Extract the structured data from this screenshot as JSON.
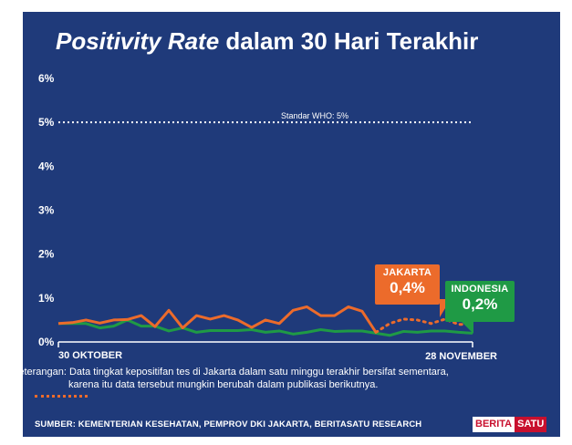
{
  "title": {
    "italic_part": "Positivity Rate",
    "rest": " dalam 30 Hari Terakhir"
  },
  "chart_data": {
    "type": "line",
    "title": "Positivity Rate dalam 30 Hari Terakhir",
    "ylim": [
      0,
      6
    ],
    "y_ticks": [
      "0%",
      "1%",
      "2%",
      "3%",
      "4%",
      "5%",
      "6%"
    ],
    "x_tick_labels": [
      "30 OKTOBER",
      "28 NOVEMBER"
    ],
    "x_range": [
      "30 Oktober",
      "28 November"
    ],
    "grid": false,
    "reference_line": {
      "value": 5,
      "label": "Standar WHO: 5%"
    },
    "series": [
      {
        "name": "JAKARTA",
        "color": "#ec6b2b",
        "values": [
          0.42,
          0.44,
          0.5,
          0.43,
          0.5,
          0.51,
          0.6,
          0.35,
          0.72,
          0.32,
          0.6,
          0.52,
          0.6,
          0.5,
          0.33,
          0.5,
          0.42,
          0.72,
          0.8,
          0.6,
          0.6,
          0.8,
          0.7,
          0.22,
          0.42,
          0.52,
          0.5,
          0.42,
          0.52,
          0.4,
          0.4
        ],
        "provisional_from_index": 23
      },
      {
        "name": "INDONESIA",
        "color": "#1f9a45",
        "values": [
          0.42,
          0.42,
          0.42,
          0.32,
          0.36,
          0.5,
          0.36,
          0.36,
          0.25,
          0.32,
          0.22,
          0.26,
          0.26,
          0.26,
          0.28,
          0.22,
          0.25,
          0.18,
          0.22,
          0.28,
          0.24,
          0.25,
          0.25,
          0.2,
          0.15,
          0.24,
          0.22,
          0.25,
          0.25,
          0.22,
          0.2
        ]
      }
    ]
  },
  "callouts": {
    "jakarta": {
      "name": "JAKARTA",
      "value": "0,4%"
    },
    "indonesia": {
      "name": "INDONESIA",
      "value": "0,2%"
    }
  },
  "note": {
    "line1": "Keterangan: Data tingkat kepositifan tes di Jakarta dalam satu minggu terakhir bersifat sementara,",
    "line2": "karena itu data tersebut mungkin berubah dalam publikasi berikutnya."
  },
  "source": "SUMBER: KEMENTERIAN KESEHATAN, PEMPROV DKI JAKARTA, BERITASATU RESEARCH",
  "logo": {
    "part1": "BERITA",
    "part2": "SATU"
  },
  "colors": {
    "background": "#1f3a7a",
    "jakarta": "#ec6b2b",
    "indonesia": "#1f9a45",
    "text": "#ffffff"
  }
}
